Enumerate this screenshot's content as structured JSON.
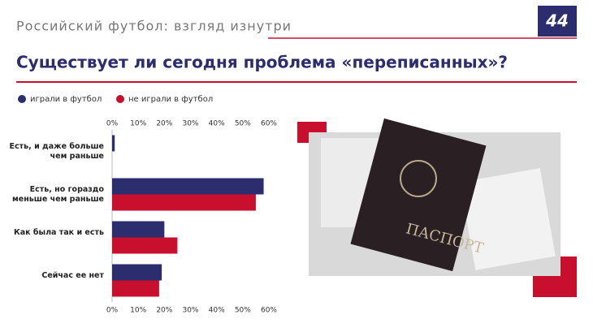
{
  "header": {
    "subtitle": "Российский футбол: взгляд изнутри",
    "page_number": "44"
  },
  "photo": {
    "text": "ПАСПОРТ"
  },
  "chart_data": {
    "type": "hbar",
    "title": "Существует ли сегодня проблема «переписанных»?",
    "categories": [
      "Есть, и даже больше чем раньше",
      "Есть, но гораздо меньше чем раньше",
      "Как была так и есть",
      "Сейчас ее нет"
    ],
    "series": [
      {
        "name": "играли в футбол",
        "color": "#2b2d6e",
        "values": [
          1,
          58,
          20,
          19
        ]
      },
      {
        "name": "не играли в футбол",
        "color": "#c8102e",
        "values": [
          0,
          55,
          25,
          18
        ]
      }
    ],
    "xlim": [
      0,
      60
    ],
    "xticks": [
      {
        "value": 0,
        "label": "0%"
      },
      {
        "value": 10,
        "label": "10%"
      },
      {
        "value": 20,
        "label": "20%"
      },
      {
        "value": 30,
        "label": "30%"
      },
      {
        "value": 40,
        "label": "40%"
      },
      {
        "value": 50,
        "label": "50%"
      },
      {
        "value": 60,
        "label": "60%"
      }
    ]
  }
}
